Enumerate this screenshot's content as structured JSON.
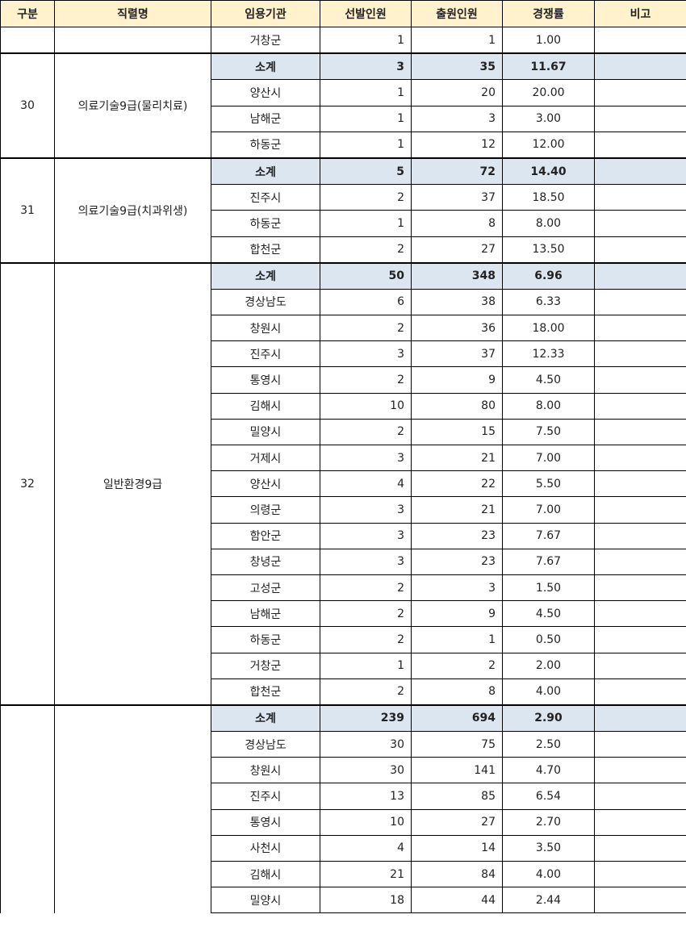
{
  "headers": [
    "구분",
    "직렬명",
    "임용기관",
    "선발인원",
    "출원인원",
    "경쟁률",
    "비고"
  ],
  "subtotal_label": "소계",
  "colors": {
    "header_bg": "#fff2cc",
    "subtotal_bg": "#dce6f1"
  },
  "groups": [
    {
      "no": "",
      "name": "",
      "continued": true,
      "rows": [
        {
          "agency": "거창군",
          "selected": "1",
          "applied": "1",
          "ratio": "1.00"
        }
      ]
    },
    {
      "no": "30",
      "name": "의료기술9급(물리치료)",
      "rows": [
        {
          "agency": "소계",
          "selected": "3",
          "applied": "35",
          "ratio": "11.67",
          "subtotal": true
        },
        {
          "agency": "양산시",
          "selected": "1",
          "applied": "20",
          "ratio": "20.00"
        },
        {
          "agency": "남해군",
          "selected": "1",
          "applied": "3",
          "ratio": "3.00"
        },
        {
          "agency": "하동군",
          "selected": "1",
          "applied": "12",
          "ratio": "12.00"
        }
      ]
    },
    {
      "no": "31",
      "name": "의료기술9급(치과위생)",
      "rows": [
        {
          "agency": "소계",
          "selected": "5",
          "applied": "72",
          "ratio": "14.40",
          "subtotal": true
        },
        {
          "agency": "진주시",
          "selected": "2",
          "applied": "37",
          "ratio": "18.50"
        },
        {
          "agency": "하동군",
          "selected": "1",
          "applied": "8",
          "ratio": "8.00"
        },
        {
          "agency": "합천군",
          "selected": "2",
          "applied": "27",
          "ratio": "13.50"
        }
      ]
    },
    {
      "no": "32",
      "name": "일반환경9급",
      "rows": [
        {
          "agency": "소계",
          "selected": "50",
          "applied": "348",
          "ratio": "6.96",
          "subtotal": true
        },
        {
          "agency": "경상남도",
          "selected": "6",
          "applied": "38",
          "ratio": "6.33"
        },
        {
          "agency": "창원시",
          "selected": "2",
          "applied": "36",
          "ratio": "18.00"
        },
        {
          "agency": "진주시",
          "selected": "3",
          "applied": "37",
          "ratio": "12.33"
        },
        {
          "agency": "통영시",
          "selected": "2",
          "applied": "9",
          "ratio": "4.50"
        },
        {
          "agency": "김해시",
          "selected": "10",
          "applied": "80",
          "ratio": "8.00"
        },
        {
          "agency": "밀양시",
          "selected": "2",
          "applied": "15",
          "ratio": "7.50"
        },
        {
          "agency": "거제시",
          "selected": "3",
          "applied": "21",
          "ratio": "7.00"
        },
        {
          "agency": "양산시",
          "selected": "4",
          "applied": "22",
          "ratio": "5.50"
        },
        {
          "agency": "의령군",
          "selected": "3",
          "applied": "21",
          "ratio": "7.00"
        },
        {
          "agency": "함안군",
          "selected": "3",
          "applied": "23",
          "ratio": "7.67"
        },
        {
          "agency": "창녕군",
          "selected": "3",
          "applied": "23",
          "ratio": "7.67"
        },
        {
          "agency": "고성군",
          "selected": "2",
          "applied": "3",
          "ratio": "1.50"
        },
        {
          "agency": "남해군",
          "selected": "2",
          "applied": "9",
          "ratio": "4.50"
        },
        {
          "agency": "하동군",
          "selected": "2",
          "applied": "1",
          "ratio": "0.50"
        },
        {
          "agency": "거창군",
          "selected": "1",
          "applied": "2",
          "ratio": "2.00"
        },
        {
          "agency": "합천군",
          "selected": "2",
          "applied": "8",
          "ratio": "4.00"
        }
      ]
    },
    {
      "no": "",
      "name": "",
      "last": true,
      "rows": [
        {
          "agency": "소계",
          "selected": "239",
          "applied": "694",
          "ratio": "2.90",
          "subtotal": true
        },
        {
          "agency": "경상남도",
          "selected": "30",
          "applied": "75",
          "ratio": "2.50"
        },
        {
          "agency": "창원시",
          "selected": "30",
          "applied": "141",
          "ratio": "4.70"
        },
        {
          "agency": "진주시",
          "selected": "13",
          "applied": "85",
          "ratio": "6.54"
        },
        {
          "agency": "통영시",
          "selected": "10",
          "applied": "27",
          "ratio": "2.70"
        },
        {
          "agency": "사천시",
          "selected": "4",
          "applied": "14",
          "ratio": "3.50"
        },
        {
          "agency": "김해시",
          "selected": "21",
          "applied": "84",
          "ratio": "4.00"
        },
        {
          "agency": "밀양시",
          "selected": "18",
          "applied": "44",
          "ratio": "2.44"
        }
      ]
    }
  ]
}
